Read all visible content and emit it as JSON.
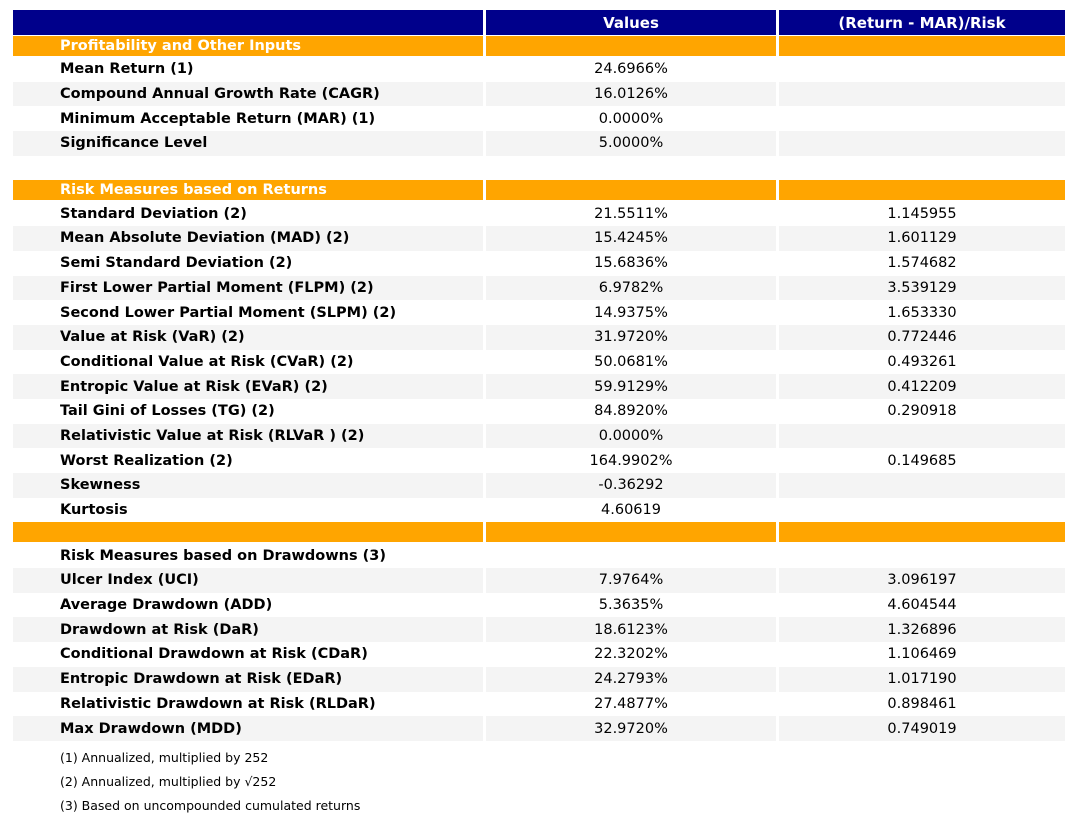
{
  "colors": {
    "header_bg": "#00008B",
    "header_text": "#FFFFFF",
    "section_bg": "#FFA500",
    "section_text": "#FFFFFF",
    "stripe_bg": "#F4F4F4",
    "body_text": "#000000"
  },
  "chart_data": {
    "type": "table",
    "columns": [
      "",
      "Values",
      "(Return - MAR)/Risk"
    ],
    "rows": [
      {
        "kind": "section",
        "label": "Profitability and Other Inputs",
        "value": "",
        "ratio": ""
      },
      {
        "kind": "data",
        "label": "Mean Return (1)",
        "value": "24.6966%",
        "ratio": ""
      },
      {
        "kind": "data",
        "label": "Compound Annual Growth Rate (CAGR)",
        "value": "16.0126%",
        "ratio": ""
      },
      {
        "kind": "data",
        "label": "Minimum Acceptable Return (MAR) (1)",
        "value": "0.0000%",
        "ratio": ""
      },
      {
        "kind": "data",
        "label": "Significance Level",
        "value": "5.0000%",
        "ratio": ""
      },
      {
        "kind": "gap"
      },
      {
        "kind": "section",
        "label": "Risk Measures based on Returns",
        "value": "",
        "ratio": ""
      },
      {
        "kind": "data",
        "label": "Standard Deviation (2)",
        "value": "21.5511%",
        "ratio": "1.145955"
      },
      {
        "kind": "data",
        "label": "Mean Absolute Deviation (MAD) (2)",
        "value": "15.4245%",
        "ratio": "1.601129"
      },
      {
        "kind": "data",
        "label": "Semi Standard Deviation (2)",
        "value": "15.6836%",
        "ratio": "1.574682"
      },
      {
        "kind": "data",
        "label": "First Lower Partial Moment (FLPM) (2)",
        "value": "6.9782%",
        "ratio": "3.539129"
      },
      {
        "kind": "data",
        "label": "Second Lower Partial Moment (SLPM) (2)",
        "value": "14.9375%",
        "ratio": "1.653330"
      },
      {
        "kind": "data",
        "label": "Value at Risk (VaR) (2)",
        "value": "31.9720%",
        "ratio": "0.772446"
      },
      {
        "kind": "data",
        "label": "Conditional Value at Risk (CVaR) (2)",
        "value": "50.0681%",
        "ratio": "0.493261"
      },
      {
        "kind": "data",
        "label": "Entropic Value at Risk (EVaR) (2)",
        "value": "59.9129%",
        "ratio": "0.412209"
      },
      {
        "kind": "data",
        "label": "Tail Gini of Losses (TG) (2)",
        "value": "84.8920%",
        "ratio": "0.290918"
      },
      {
        "kind": "data",
        "label": "Relativistic Value at Risk (RLVaR ) (2)",
        "value": "0.0000%",
        "ratio": ""
      },
      {
        "kind": "data",
        "label": "Worst Realization (2)",
        "value": "164.9902%",
        "ratio": "0.149685"
      },
      {
        "kind": "data",
        "label": "Skewness",
        "value": "-0.36292",
        "ratio": ""
      },
      {
        "kind": "data",
        "label": "Kurtosis",
        "value": "4.60619",
        "ratio": ""
      },
      {
        "kind": "section",
        "label": "",
        "value": "",
        "ratio": ""
      },
      {
        "kind": "title",
        "label": "Risk Measures based on Drawdowns (3)",
        "value": "",
        "ratio": ""
      },
      {
        "kind": "data",
        "label": "Ulcer Index (UCI)",
        "value": "7.9764%",
        "ratio": "3.096197"
      },
      {
        "kind": "data",
        "label": "Average Drawdown (ADD)",
        "value": "5.3635%",
        "ratio": "4.604544"
      },
      {
        "kind": "data",
        "label": "Drawdown at Risk (DaR)",
        "value": "18.6123%",
        "ratio": "1.326896"
      },
      {
        "kind": "data",
        "label": "Conditional Drawdown at Risk (CDaR)",
        "value": "22.3202%",
        "ratio": "1.106469"
      },
      {
        "kind": "data",
        "label": "Entropic Drawdown at Risk (EDaR)",
        "value": "24.2793%",
        "ratio": "1.017190"
      },
      {
        "kind": "data",
        "label": "Relativistic Drawdown at Risk (RLDaR)",
        "value": "27.4877%",
        "ratio": "0.898461"
      },
      {
        "kind": "data",
        "label": "Max Drawdown (MDD)",
        "value": "32.9720%",
        "ratio": "0.749019"
      }
    ],
    "footnotes": [
      "(1) Annualized, multiplied by 252",
      "(2) Annualized, multiplied by √252",
      "(3) Based on uncompounded cumulated returns"
    ]
  }
}
